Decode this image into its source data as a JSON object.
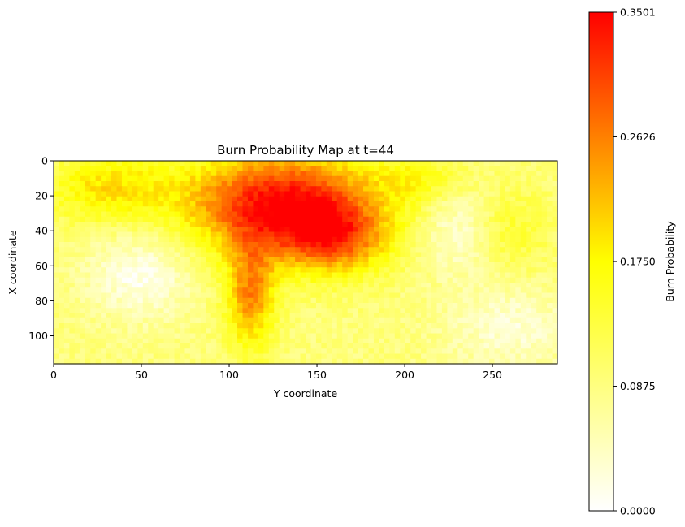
{
  "chart_data": {
    "type": "heatmap",
    "title": "Burn Probability Map at t=44",
    "xlabel": "Y coordinate",
    "ylabel": "X coordinate",
    "xlim": [
      0,
      287
    ],
    "ylim": [
      116,
      0
    ],
    "x_ticks": [
      0,
      50,
      100,
      150,
      200,
      250
    ],
    "y_ticks": [
      0,
      20,
      40,
      60,
      80,
      100
    ],
    "colorbar": {
      "label": "Burn Probability",
      "min": 0.0,
      "max": 0.3501,
      "ticks": [
        "0.0000",
        "0.0875",
        "0.1750",
        "0.2626",
        "0.3501"
      ],
      "colormap": "autumn_r"
    },
    "grid": false,
    "field_summary": {
      "description": "Spatial burn probability field; highest values (≈0.30–0.35) concentrated in upper-center region around Y 60–180, X 0–60, tapering to a tongue near Y 100–120 down to X ≈ 100; lower values (≈0.0–0.15) elsewhere, with near-zero patches at left-bottom and right side.",
      "hotspots": [
        {
          "y": 130,
          "x": 20,
          "value": 0.34
        },
        {
          "y": 90,
          "x": 10,
          "value": 0.33
        },
        {
          "y": 150,
          "x": 45,
          "value": 0.33
        },
        {
          "y": 110,
          "x": 75,
          "value": 0.28
        },
        {
          "y": 30,
          "x": 10,
          "value": 0.22
        },
        {
          "y": 210,
          "x": 10,
          "value": 0.2
        }
      ]
    }
  }
}
